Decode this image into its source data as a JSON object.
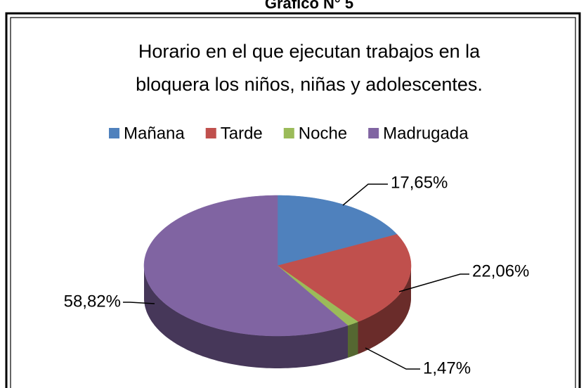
{
  "heading": "Gráfico N° 5",
  "chart_data": {
    "type": "pie",
    "title": [
      "Horario en el que ejecutan trabajos en la",
      "bloquera los niños, niñas y adolescentes."
    ],
    "categories": [
      "Mañana",
      "Tarde",
      "Noche",
      "Madrugada"
    ],
    "values": [
      17.65,
      22.06,
      1.47,
      58.82
    ],
    "value_labels": [
      "17,65%",
      "22,06%",
      "1,47%",
      "58,82%"
    ],
    "colors": [
      "#4f81bd",
      "#c0504d",
      "#9bbb59",
      "#8064a2"
    ],
    "legend": "top"
  }
}
